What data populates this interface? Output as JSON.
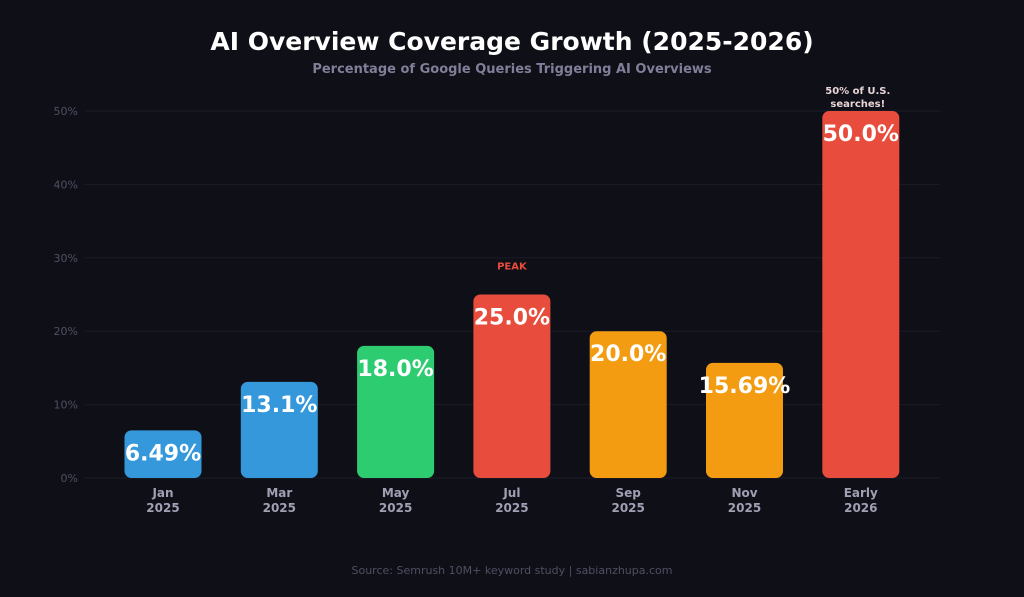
{
  "chart_data": {
    "type": "bar",
    "title": "AI Overview Coverage Growth (2025-2026)",
    "subtitle": "Percentage of Google Queries Triggering AI Overviews",
    "categories": [
      [
        "Jan",
        "2025"
      ],
      [
        "Mar",
        "2025"
      ],
      [
        "May",
        "2025"
      ],
      [
        "Jul",
        "2025"
      ],
      [
        "Sep",
        "2025"
      ],
      [
        "Nov",
        "2025"
      ],
      [
        "Early",
        "2026"
      ]
    ],
    "values": [
      6.49,
      13.1,
      18.0,
      25.0,
      20.0,
      15.69,
      50.0
    ],
    "data_labels": [
      "6.49%",
      "13.1%",
      "18.0%",
      "25.0%",
      "20.0%",
      "15.69%",
      "50.0%"
    ],
    "colors": [
      "#3498db",
      "#3498db",
      "#2ecc71",
      "#e74c3c",
      "#f39c12",
      "#f39c12",
      "#e74c3c"
    ],
    "annotations": [
      {
        "bar_index": 3,
        "text": "PEAK",
        "color": "#e74c3c"
      },
      {
        "bar_index": 6,
        "text_lines": [
          "50% of U.S.",
          "searches!"
        ],
        "color": "#e8d5d5"
      }
    ],
    "yticks": [
      "0%",
      "10%",
      "20%",
      "30%",
      "40%",
      "50%"
    ],
    "ylim": [
      0,
      50
    ],
    "grid": true,
    "source": "Source: Semrush 10M+ keyword study | sabianzhupa.com"
  }
}
